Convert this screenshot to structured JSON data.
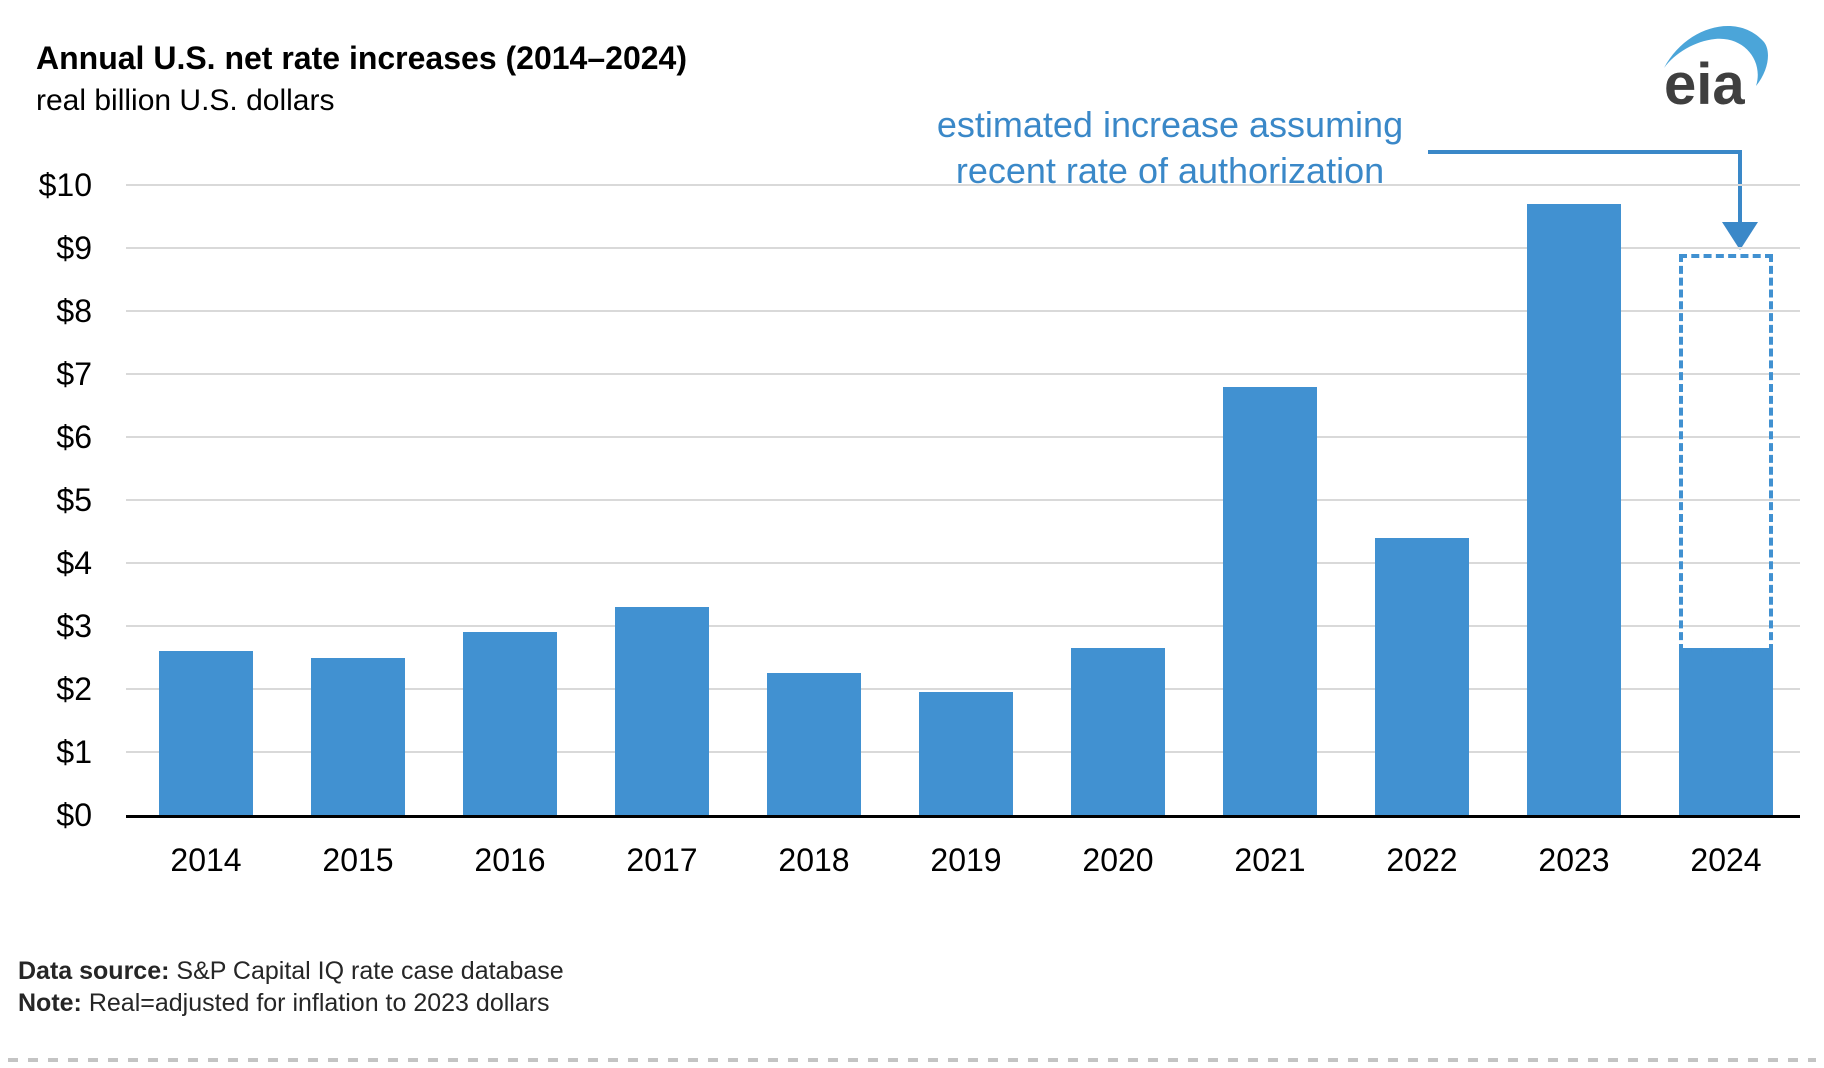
{
  "header": {
    "title": "Annual U.S. net rate increases (2014–2024)",
    "subtitle": "real billion U.S. dollars"
  },
  "logo": {
    "text": "eia",
    "swoosh_color": "#4ba5d9",
    "text_color": "#3f3f3f"
  },
  "annotation": {
    "line1": "estimated increase assuming",
    "line2": "recent rate of authorization",
    "color": "#3a88c8"
  },
  "chart_data": {
    "type": "bar",
    "title": "Annual U.S. net rate increases (2014–2024)",
    "subtitle": "real billion U.S. dollars",
    "categories": [
      "2014",
      "2015",
      "2016",
      "2017",
      "2018",
      "2019",
      "2020",
      "2021",
      "2022",
      "2023",
      "2024"
    ],
    "values": [
      2.6,
      2.5,
      2.9,
      3.3,
      2.25,
      1.95,
      2.65,
      6.8,
      4.4,
      9.7,
      2.65
    ],
    "estimated": {
      "category": "2024",
      "actual": 2.65,
      "total": 8.9,
      "style": "dashed-outline",
      "label": "estimated increase assuming recent rate of authorization"
    },
    "ylim": [
      0,
      10
    ],
    "yticks": [
      0,
      1,
      2,
      3,
      4,
      5,
      6,
      7,
      8,
      9,
      10
    ],
    "ytick_labels": [
      "$0",
      "$1",
      "$2",
      "$3",
      "$4",
      "$5",
      "$6",
      "$7",
      "$8",
      "$9",
      "$10"
    ],
    "grid": true,
    "bar_color": "#4191d1",
    "gridline_color": "#d9d9d9",
    "axis_color": "#000000"
  },
  "footer": {
    "source_label": "Data source:",
    "source_text": " S&P Capital IQ rate case database",
    "note_label": "Note:",
    "note_text": " Real=adjusted for inflation to 2023 dollars"
  }
}
